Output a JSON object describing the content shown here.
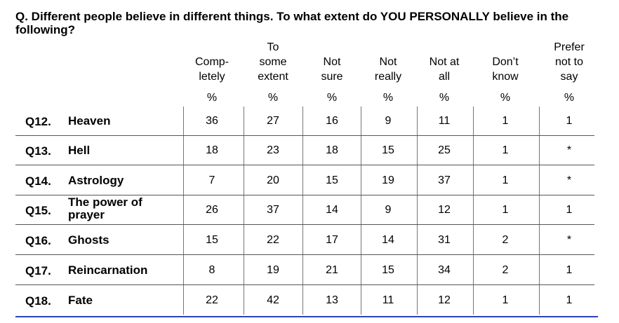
{
  "question": "Q. Different people believe in different things.  To what extent do YOU PERSONALLY believe in the following?",
  "columns": [
    {
      "line1": "",
      "line2": "Comp-",
      "line3": "letely",
      "unit": "%"
    },
    {
      "line1": "To",
      "line2": "some",
      "line3": "extent",
      "unit": "%"
    },
    {
      "line1": "",
      "line2": "Not",
      "line3": "sure",
      "unit": "%"
    },
    {
      "line1": "",
      "line2": "Not",
      "line3": "really",
      "unit": "%"
    },
    {
      "line1": "",
      "line2": "Not at",
      "line3": "all",
      "unit": "%"
    },
    {
      "line1": "",
      "line2": "Don’t",
      "line3": "know",
      "unit": "%"
    },
    {
      "line1": "Prefer",
      "line2": "not to",
      "line3": "say",
      "unit": "%"
    }
  ],
  "rows": [
    {
      "num": "Q12.",
      "label": "Heaven",
      "values": [
        "36",
        "27",
        "16",
        "9",
        "11",
        "1",
        "1"
      ]
    },
    {
      "num": "Q13.",
      "label": "Hell",
      "values": [
        "18",
        "23",
        "18",
        "15",
        "25",
        "1",
        "*"
      ]
    },
    {
      "num": "Q14.",
      "label": "Astrology",
      "values": [
        "7",
        "20",
        "15",
        "19",
        "37",
        "1",
        "*"
      ]
    },
    {
      "num": "Q15.",
      "label": "The power of prayer",
      "values": [
        "26",
        "37",
        "14",
        "9",
        "12",
        "1",
        "1"
      ]
    },
    {
      "num": "Q16.",
      "label": "Ghosts",
      "values": [
        "15",
        "22",
        "17",
        "14",
        "31",
        "2",
        "*"
      ]
    },
    {
      "num": "Q17.",
      "label": "Reincarnation",
      "values": [
        "8",
        "19",
        "21",
        "15",
        "34",
        "2",
        "1"
      ]
    },
    {
      "num": "Q18.",
      "label": "Fate",
      "values": [
        "22",
        "42",
        "13",
        "11",
        "12",
        "1",
        "1"
      ]
    }
  ]
}
